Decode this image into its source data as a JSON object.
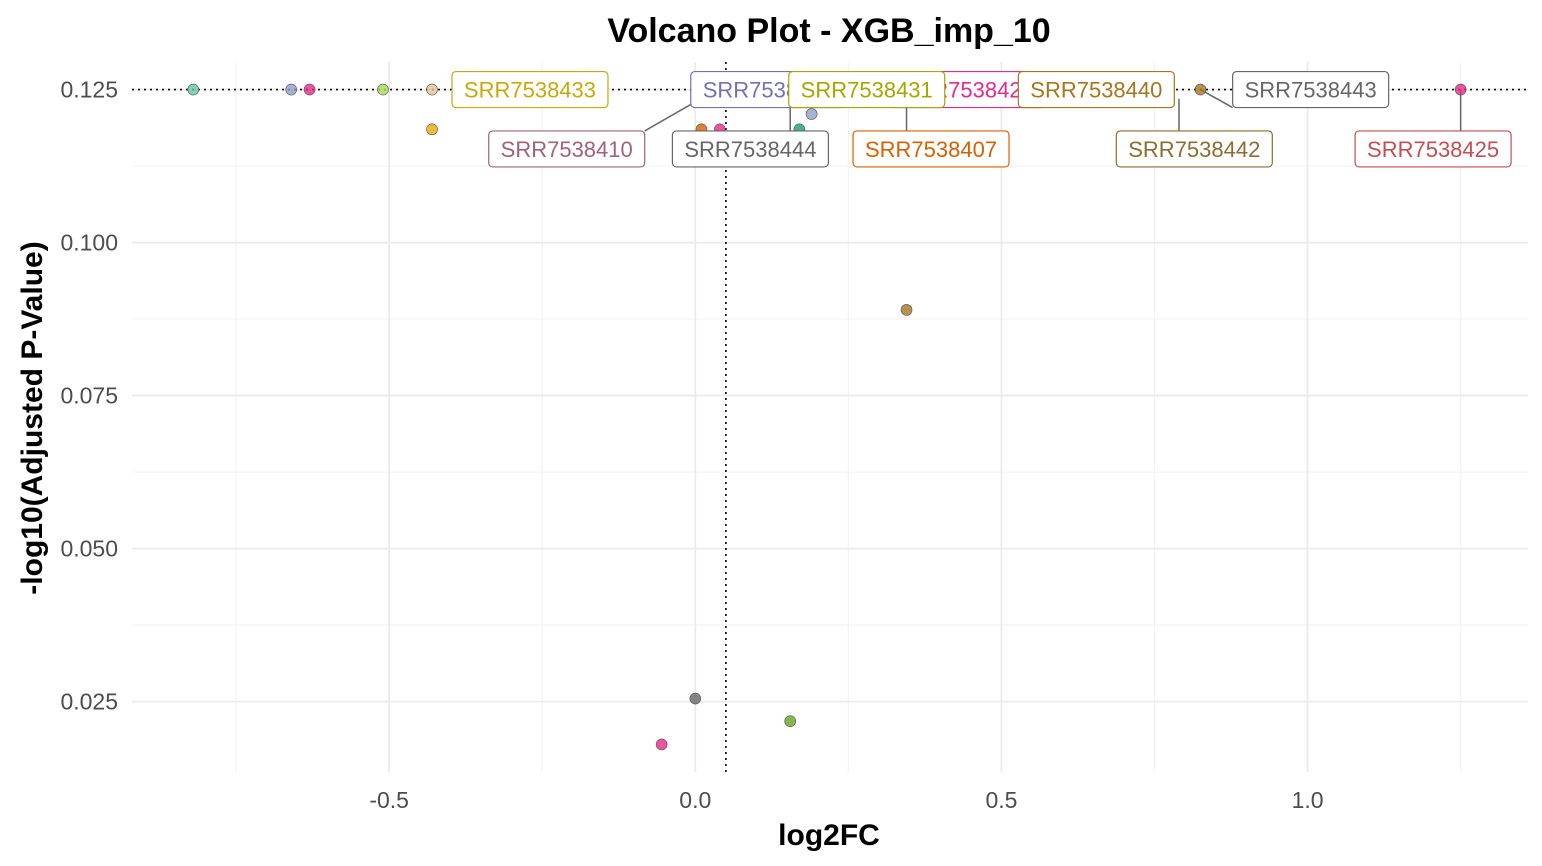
{
  "chart_data": {
    "type": "scatter",
    "title": "Volcano Plot - XGB_imp_10",
    "xlabel": "log2FC",
    "ylabel": "-log10(Adjusted P-Value)",
    "xlim": [
      -0.92,
      1.36
    ],
    "ylim": [
      0.0135,
      0.1295
    ],
    "x_ticks": [
      -0.5,
      0.0,
      0.5,
      1.0
    ],
    "x_tick_labels": [
      "-0.5",
      "0.0",
      "0.5",
      "1.0"
    ],
    "y_ticks": [
      0.025,
      0.05,
      0.075,
      0.1,
      0.125
    ],
    "y_tick_labels": [
      "0.025",
      "0.050",
      "0.075",
      "0.100",
      "0.125"
    ],
    "grid": true,
    "reference_lines": {
      "vertical_x": 0.05,
      "horizontal_y": 0.125,
      "style": "dotted"
    },
    "points": [
      {
        "x": -0.82,
        "y": 0.125,
        "color": "#66c2a5"
      },
      {
        "x": -0.66,
        "y": 0.125,
        "color": "#8da0cb"
      },
      {
        "x": -0.63,
        "y": 0.125,
        "color": "#e7298a"
      },
      {
        "x": -0.51,
        "y": 0.125,
        "color": "#a6d854"
      },
      {
        "x": -0.43,
        "y": 0.125,
        "color": "#e5c494"
      },
      {
        "x": -0.385,
        "y": 0.125,
        "color": "#b3b3b3"
      },
      {
        "x": -0.365,
        "y": 0.125,
        "color": "#a6761d"
      },
      {
        "x": -0.36,
        "y": 0.125,
        "color": "#e6ab02"
      },
      {
        "x": -0.335,
        "y": 0.125,
        "color": "#66a61e"
      },
      {
        "x": -0.285,
        "y": 0.125,
        "color": "#d95f02"
      },
      {
        "x": -0.275,
        "y": 0.125,
        "color": "#d95f02"
      },
      {
        "x": -0.26,
        "y": 0.125,
        "color": "#ffd92f"
      },
      {
        "x": 0.035,
        "y": 0.125,
        "color": "#a6761d"
      },
      {
        "x": 0.825,
        "y": 0.125,
        "color": "#a6761d"
      },
      {
        "x": 1.25,
        "y": 0.125,
        "color": "#e7298a"
      },
      {
        "x": -0.43,
        "y": 0.1185,
        "color": "#e6ab02"
      },
      {
        "x": 0.01,
        "y": 0.1185,
        "color": "#d95f02"
      },
      {
        "x": 0.04,
        "y": 0.1185,
        "color": "#e7298a"
      },
      {
        "x": 0.17,
        "y": 0.1185,
        "color": "#1b9e77"
      },
      {
        "x": 0.19,
        "y": 0.121,
        "color": "#8da0cb"
      },
      {
        "x": 0.345,
        "y": 0.089,
        "color": "#a6761d"
      },
      {
        "x": 0.0,
        "y": 0.0255,
        "color": "#666666"
      },
      {
        "x": 0.155,
        "y": 0.0218,
        "color": "#66a61e"
      },
      {
        "x": -0.055,
        "y": 0.018,
        "color": "#e7298a"
      }
    ],
    "labels": [
      {
        "text": "SRR7538433",
        "x": -0.27,
        "y": 0.125,
        "color": "#c8a80a",
        "anchor_x": -0.27,
        "anchor_y": 0.125
      },
      {
        "text": "SRR7538437",
        "x": 0.12,
        "y": 0.125,
        "color": "#7570b3",
        "anchor_x": 0.035,
        "anchor_y": 0.125
      },
      {
        "text": "SRR7538421",
        "x": 0.445,
        "y": 0.125,
        "color": "#e7298a",
        "anchor_x": 0.4,
        "anchor_y": 0.125
      },
      {
        "text": "SRR7538431",
        "x": 0.28,
        "y": 0.125,
        "color": "#a6a600",
        "anchor_x": 0.2,
        "anchor_y": 0.125
      },
      {
        "text": "SRR7538440",
        "x": 0.655,
        "y": 0.125,
        "color": "#a6761d",
        "anchor_x": 0.655,
        "anchor_y": 0.125
      },
      {
        "text": "SRR7538443",
        "x": 1.005,
        "y": 0.125,
        "color": "#666666",
        "anchor_x": 0.825,
        "anchor_y": 0.125
      },
      {
        "text": "SRR7538410",
        "x": -0.21,
        "y": 0.1153,
        "color": "#a0627a",
        "anchor_x": 0.035,
        "anchor_y": 0.125
      },
      {
        "text": "SRR7538444",
        "x": 0.09,
        "y": 0.1153,
        "color": "#666666",
        "anchor_x": 0.155,
        "anchor_y": 0.1225
      },
      {
        "text": "SRR7538407",
        "x": 0.385,
        "y": 0.1153,
        "color": "#d95f02",
        "anchor_x": 0.345,
        "anchor_y": 0.1235
      },
      {
        "text": "SRR7538442",
        "x": 0.815,
        "y": 0.1153,
        "color": "#8c6d31",
        "anchor_x": 0.79,
        "anchor_y": 0.1235
      },
      {
        "text": "SRR7538425",
        "x": 1.205,
        "y": 0.1153,
        "color": "#c44e52",
        "anchor_x": 1.25,
        "anchor_y": 0.125
      }
    ]
  }
}
